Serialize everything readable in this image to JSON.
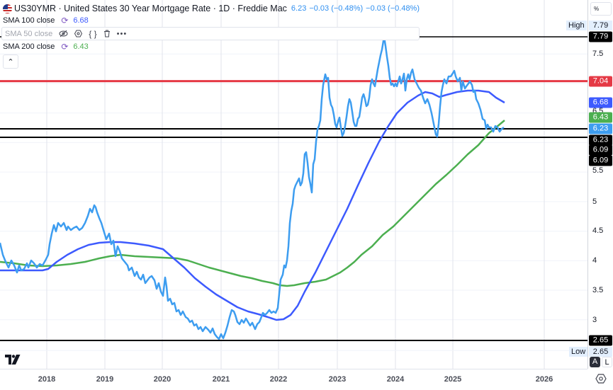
{
  "header": {
    "symbol": "US30YMR",
    "title": "US30YMR · United States 30 Year Mortgage Rate · 1D · Freddie Mac",
    "last": "6.23",
    "change1": "−0.03 (−0.48%)",
    "change2": "−0.03 (−0.48%)",
    "flag_icon": "us-flag-icon"
  },
  "indicators": [
    {
      "name": "SMA 100 close",
      "value": "6.68",
      "color": "#3d5afe"
    },
    {
      "name": "SMA 50 close",
      "value": "",
      "color": "#a3a6af",
      "hidden": true
    },
    {
      "name": "SMA 200 close",
      "value": "6.43",
      "color": "#4caf50"
    }
  ],
  "price_axis": {
    "unit": "%",
    "ticks": [
      "7.5",
      "6.5",
      "5.5",
      "5",
      "4.5",
      "4",
      "3.5",
      "3"
    ],
    "tags": {
      "high_label": "High",
      "high_value": "7.79",
      "high_line": "7.79",
      "red_line": "7.04",
      "sma100": "6.68",
      "sma200": "6.43",
      "last": "6.23",
      "line_a": "6.23",
      "line_b": "6.09",
      "line_c": "6.09",
      "low_line": "2.65",
      "low_label": "Low",
      "low_value": "2.65"
    },
    "auto_label": "A",
    "log_label": "L"
  },
  "time_axis": {
    "ticks": [
      "2018",
      "2019",
      "2020",
      "2021",
      "2022",
      "2023",
      "2024",
      "2025",
      "2026"
    ]
  },
  "colors": {
    "price": "#3d9df0",
    "sma100": "#3d5afe",
    "sma200": "#4caf50",
    "red_line": "#e53945",
    "horiz_line": "#000000"
  },
  "chart_data": {
    "type": "line",
    "title": "US30YMR · United States 30 Year Mortgage Rate · 1D · Freddie Mac",
    "xlabel": "",
    "ylabel": "%",
    "ylim": [
      2.3,
      8.4
    ],
    "grid": true,
    "legend_position": "top-left",
    "x": [
      "2017.5",
      "2018.0",
      "2018.5",
      "2018.9",
      "2019.0",
      "2019.5",
      "2020.0",
      "2020.5",
      "2021.0",
      "2021.3",
      "2021.8",
      "2022.0",
      "2022.4",
      "2022.8",
      "2023.0",
      "2023.5",
      "2023.8",
      "2024.0",
      "2024.3",
      "2024.7",
      "2025.0",
      "2025.5",
      "2025.6"
    ],
    "series": [
      {
        "name": "US30YMR",
        "values": [
          4.2,
          3.95,
          4.55,
          4.94,
          4.5,
          3.8,
          3.6,
          3.1,
          2.65,
          3.1,
          3.05,
          3.3,
          5.1,
          7.04,
          6.3,
          6.8,
          7.79,
          6.6,
          7.0,
          6.09,
          6.9,
          6.7,
          6.23
        ]
      },
      {
        "name": "SMA 100 close",
        "values": [
          3.8,
          3.82,
          4.1,
          4.28,
          4.3,
          4.25,
          4.05,
          3.6,
          3.3,
          3.1,
          3.0,
          3.05,
          3.9,
          4.9,
          5.4,
          6.2,
          6.5,
          6.7,
          6.85,
          6.75,
          6.8,
          6.8,
          6.68
        ]
      },
      {
        "name": "SMA 200 close",
        "values": [
          3.95,
          3.9,
          3.95,
          4.05,
          4.07,
          4.07,
          4.05,
          3.9,
          3.75,
          3.62,
          3.55,
          3.6,
          3.75,
          4.2,
          4.5,
          4.9,
          5.25,
          5.4,
          5.7,
          5.95,
          6.1,
          6.3,
          6.43
        ]
      }
    ],
    "horizontal_lines": [
      7.79,
      7.04,
      6.23,
      6.09,
      2.65
    ],
    "high": 7.79,
    "low": 2.65
  }
}
